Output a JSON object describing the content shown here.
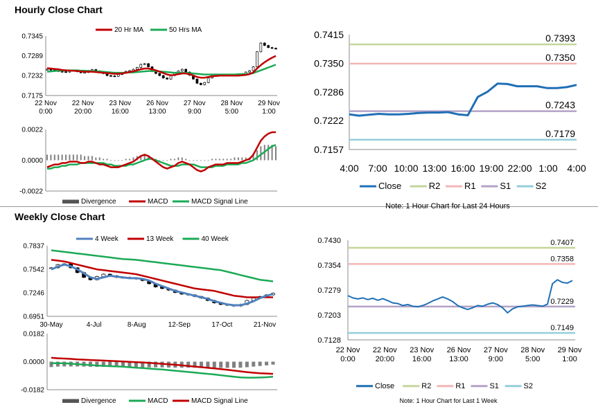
{
  "titles": {
    "hourly": "Hourly Close Chart",
    "weekly": "Weekly Close Chart"
  },
  "chart_data": [
    {
      "id": "hourly-price",
      "type": "line",
      "legend": [
        "20 Hr MA",
        "50 Hrs MA"
      ],
      "colors": {
        "ma20": "#c00000",
        "ma50": "#1aaa55",
        "bars": "#000000"
      },
      "yticks": [
        "0.7345",
        "0.7289",
        "0.7232",
        "0.7175"
      ],
      "ylim": [
        0.7175,
        0.7345
      ],
      "xticks": [
        [
          "22 Nov",
          "0:00"
        ],
        [
          "22 Nov",
          "20:00"
        ],
        [
          "23 Nov",
          "16:00"
        ],
        [
          "26 Nov",
          "13:00"
        ],
        [
          "27 Nov",
          "9:00"
        ],
        [
          "28 Nov",
          "5:00"
        ],
        [
          "29 Nov",
          "1:00"
        ]
      ],
      "close": [
        0.725,
        0.7248,
        0.7246,
        0.7244,
        0.7243,
        0.7242,
        0.7245,
        0.7247,
        0.7243,
        0.724,
        0.7241,
        0.7246,
        0.7249,
        0.7245,
        0.724,
        0.7238,
        0.7232,
        0.7231,
        0.723,
        0.7235,
        0.724,
        0.7244,
        0.7246,
        0.725,
        0.7255,
        0.7264,
        0.7266,
        0.7257,
        0.7244,
        0.7238,
        0.7232,
        0.7225,
        0.7222,
        0.7232,
        0.724,
        0.7245,
        0.725,
        0.7242,
        0.7233,
        0.7222,
        0.721,
        0.7206,
        0.7212,
        0.7225,
        0.7232,
        0.7233,
        0.7233,
        0.7233,
        0.7233,
        0.7233,
        0.7234,
        0.7235,
        0.7237,
        0.7242,
        0.7246,
        0.7257,
        0.73,
        0.7325,
        0.7318,
        0.7312,
        0.731,
        0.7309
      ],
      "ma20": [
        0.7253,
        0.7252,
        0.7251,
        0.725,
        0.7248,
        0.7247,
        0.7246,
        0.7246,
        0.7245,
        0.7244,
        0.7243,
        0.7243,
        0.7243,
        0.7242,
        0.7241,
        0.724,
        0.7239,
        0.7238,
        0.7237,
        0.7237,
        0.7238,
        0.724,
        0.7242,
        0.7244,
        0.7247,
        0.725,
        0.7252,
        0.7252,
        0.725,
        0.7247,
        0.7243,
        0.7239,
        0.7235,
        0.7233,
        0.7234,
        0.7236,
        0.7238,
        0.7238,
        0.7236,
        0.7232,
        0.7228,
        0.7226,
        0.7226,
        0.7228,
        0.723,
        0.7231,
        0.7232,
        0.7232,
        0.7232,
        0.7232,
        0.7232,
        0.7232,
        0.7233,
        0.7234,
        0.7236,
        0.7241,
        0.7252,
        0.7262,
        0.727,
        0.7277,
        0.7283,
        0.7288
      ],
      "ma50": [
        0.7243,
        0.7244,
        0.7245,
        0.7246,
        0.7246,
        0.7247,
        0.7247,
        0.7247,
        0.7247,
        0.7246,
        0.7246,
        0.7245,
        0.7245,
        0.7244,
        0.7244,
        0.7243,
        0.7242,
        0.7241,
        0.724,
        0.724,
        0.724,
        0.724,
        0.7241,
        0.7241,
        0.7242,
        0.7243,
        0.7244,
        0.7245,
        0.7245,
        0.7245,
        0.7244,
        0.7243,
        0.7242,
        0.7241,
        0.724,
        0.724,
        0.724,
        0.724,
        0.7239,
        0.7238,
        0.7237,
        0.7236,
        0.7235,
        0.7235,
        0.7235,
        0.7235,
        0.7235,
        0.7235,
        0.7235,
        0.7235,
        0.7235,
        0.7236,
        0.7236,
        0.7236,
        0.7237,
        0.7239,
        0.7243,
        0.7247,
        0.7251,
        0.7255,
        0.7259,
        0.7263
      ]
    },
    {
      "id": "hourly-macd",
      "type": "line",
      "legend": [
        "Divergence",
        "MACD",
        "MACD Signal Line"
      ],
      "colors": {
        "divergence": "#808080",
        "macd": "#c00000",
        "signal": "#1aaa55"
      },
      "yticks": [
        "0.0022",
        "0.0000",
        "-0.0022"
      ],
      "ylim": [
        -0.0022,
        0.0022
      ],
      "macd": [
        -0.0005,
        -0.0004,
        -0.0003,
        -0.0003,
        -0.0002,
        -0.0002,
        -0.0001,
        -0.0001,
        -0.0001,
        -0.0002,
        -0.0002,
        -0.0001,
        -0.0001,
        -0.0002,
        -0.0003,
        -0.0003,
        -0.0004,
        -0.0005,
        -0.0005,
        -0.0005,
        -0.0004,
        -0.0003,
        -0.0002,
        -0.0001,
        0.0001,
        0.0003,
        0.0004,
        0.0003,
        0.0001,
        -0.0001,
        -0.0003,
        -0.0005,
        -0.0006,
        -0.0005,
        -0.0004,
        -0.0002,
        -0.0001,
        -0.0002,
        -0.0003,
        -0.0005,
        -0.0007,
        -0.0008,
        -0.0007,
        -0.0005,
        -0.0004,
        -0.0003,
        -0.0003,
        -0.0003,
        -0.0002,
        -0.0002,
        -0.0002,
        -0.0002,
        -0.0001,
        0.0,
        0.0001,
        0.0004,
        0.0009,
        0.0014,
        0.0017,
        0.0019,
        0.002,
        0.002
      ],
      "signal": [
        -0.0006,
        -0.0006,
        -0.0005,
        -0.0005,
        -0.0004,
        -0.0004,
        -0.0003,
        -0.0003,
        -0.0003,
        -0.0002,
        -0.0002,
        -0.0002,
        -0.0002,
        -0.0002,
        -0.0002,
        -0.0002,
        -0.0003,
        -0.0003,
        -0.0004,
        -0.0004,
        -0.0004,
        -0.0004,
        -0.0003,
        -0.0003,
        -0.0002,
        -0.0001,
        0.0,
        0.0001,
        0.0001,
        0.0,
        -0.0001,
        -0.0002,
        -0.0003,
        -0.0004,
        -0.0004,
        -0.0004,
        -0.0003,
        -0.0003,
        -0.0003,
        -0.0003,
        -0.0004,
        -0.0005,
        -0.0005,
        -0.0005,
        -0.0005,
        -0.0004,
        -0.0004,
        -0.0004,
        -0.0003,
        -0.0003,
        -0.0003,
        -0.0003,
        -0.0002,
        -0.0002,
        -0.0001,
        0.0,
        0.0002,
        0.0004,
        0.0006,
        0.0008,
        0.001,
        0.0011
      ],
      "divergence": [
        0.0004,
        0.0004,
        0.0004,
        0.0004,
        0.0004,
        0.0004,
        0.0004,
        0.0004,
        0.0004,
        0.0004,
        0.0003,
        0.0003,
        0.0003,
        0.0002,
        0.0002,
        0.0001,
        0.0001,
        0.0,
        0.0,
        0.0,
        0.0,
        0.0001,
        0.0001,
        0.0002,
        0.0003,
        0.0003,
        0.0004,
        0.0003,
        0.0002,
        0.0001,
        0.0,
        0.0,
        0.0,
        0.0001,
        0.0001,
        0.0002,
        0.0002,
        0.0001,
        0.0,
        0.0,
        0.0,
        0.0,
        0.0,
        0.0,
        0.0001,
        0.0001,
        0.0001,
        0.0001,
        0.0001,
        0.0001,
        0.0002,
        0.0002,
        0.0002,
        0.0002,
        0.0002,
        0.0004,
        0.0007,
        0.001,
        0.0011,
        0.0011,
        0.0011,
        0.001
      ]
    },
    {
      "id": "hourly-24h",
      "type": "line",
      "legend": [
        "Close",
        "R2",
        "R1",
        "S1",
        "S2"
      ],
      "note": "Note: 1 Hour Chart for Last 24 Hours",
      "colors": {
        "close": "#1f6fb5",
        "r2": "#c3d69b",
        "r1": "#f2b6b6",
        "s1": "#b3a2c7",
        "s2": "#93cddd"
      },
      "yticks": [
        "0.7415",
        "0.7350",
        "0.7286",
        "0.7222",
        "0.7157"
      ],
      "ylim": [
        0.7157,
        0.7415
      ],
      "xticks": [
        "4:00",
        "7:00",
        "10:00",
        "13:00",
        "16:00",
        "19:00",
        "22:00",
        "1:00",
        "4:00"
      ],
      "levels": {
        "r2": 0.7393,
        "r1": 0.735,
        "s1": 0.7243,
        "s2": 0.7179
      },
      "level_labels": {
        "r2": "0.7393",
        "r1": "0.7350",
        "s1": "0.7243",
        "s2": "0.7179"
      },
      "close": [
        0.7236,
        0.7233,
        0.7235,
        0.7237,
        0.7236,
        0.7236,
        0.7237,
        0.7239,
        0.724,
        0.724,
        0.7241,
        0.7236,
        0.7234,
        0.7275,
        0.7287,
        0.7305,
        0.7304,
        0.7299,
        0.7299,
        0.7299,
        0.7295,
        0.7295,
        0.7297,
        0.7302
      ]
    },
    {
      "id": "weekly-price",
      "type": "line",
      "legend": [
        "4 Week",
        "13 Week",
        "40 Week"
      ],
      "colors": {
        "w4": "#4f81bd",
        "w13": "#c00000",
        "w40": "#1aaa55"
      },
      "yticks": [
        "0.7837",
        "0.7542",
        "0.7246",
        "0.6951"
      ],
      "ylim": [
        0.6951,
        0.7837
      ],
      "xticks": [
        "30-May",
        "4-Jul",
        "8-Aug",
        "12-Sep",
        "17-Oct",
        "21-Nov"
      ],
      "close": [
        0.756,
        0.76,
        0.761,
        0.756,
        0.75,
        0.744,
        0.741,
        0.745,
        0.748,
        0.746,
        0.744,
        0.744,
        0.743,
        0.742,
        0.74,
        0.736,
        0.732,
        0.73,
        0.728,
        0.725,
        0.723,
        0.722,
        0.72,
        0.718,
        0.715,
        0.712,
        0.71,
        0.709,
        0.708,
        0.71,
        0.715,
        0.718,
        0.72,
        0.722,
        0.724
      ],
      "w4": [
        0.754,
        0.7575,
        0.76,
        0.758,
        0.754,
        0.749,
        0.744,
        0.742,
        0.744,
        0.746,
        0.745,
        0.744,
        0.743,
        0.743,
        0.742,
        0.74,
        0.736,
        0.733,
        0.73,
        0.727,
        0.725,
        0.723,
        0.721,
        0.719,
        0.717,
        0.714,
        0.712,
        0.71,
        0.709,
        0.709,
        0.711,
        0.714,
        0.718,
        0.721,
        0.723
      ],
      "w13": [
        0.766,
        0.765,
        0.764,
        0.762,
        0.76,
        0.758,
        0.756,
        0.754,
        0.753,
        0.752,
        0.751,
        0.75,
        0.749,
        0.748,
        0.746,
        0.744,
        0.742,
        0.74,
        0.738,
        0.736,
        0.734,
        0.732,
        0.73,
        0.729,
        0.728,
        0.727,
        0.725,
        0.723,
        0.721,
        0.72,
        0.719,
        0.719,
        0.719,
        0.719,
        0.719
      ],
      "w40": [
        0.778,
        0.777,
        0.776,
        0.775,
        0.774,
        0.773,
        0.772,
        0.771,
        0.77,
        0.769,
        0.768,
        0.767,
        0.7665,
        0.766,
        0.765,
        0.764,
        0.763,
        0.762,
        0.761,
        0.76,
        0.759,
        0.758,
        0.757,
        0.756,
        0.755,
        0.754,
        0.753,
        0.751,
        0.749,
        0.747,
        0.745,
        0.743,
        0.741,
        0.74,
        0.739
      ]
    },
    {
      "id": "weekly-macd",
      "type": "line",
      "legend": [
        "Divergence",
        "MACD",
        "MACD Signal Line"
      ],
      "colors": {
        "divergence": "#808080",
        "macd": "#1aaa55",
        "signal": "#c00000"
      },
      "yticks": [
        "0.0182",
        "0.0000",
        "-0.0182"
      ],
      "ylim": [
        -0.0182,
        0.0182
      ],
      "macd": [
        -0.001,
        -0.001,
        -0.0011,
        -0.0013,
        -0.0016,
        -0.0019,
        -0.0022,
        -0.0025,
        -0.0027,
        -0.0029,
        -0.0031,
        -0.0033,
        -0.0036,
        -0.0039,
        -0.0042,
        -0.0045,
        -0.0048,
        -0.0051,
        -0.0055,
        -0.0059,
        -0.0063,
        -0.0067,
        -0.0071,
        -0.0075,
        -0.0079,
        -0.0083,
        -0.0088,
        -0.0093,
        -0.0098,
        -0.0102,
        -0.0104,
        -0.0104,
        -0.0103,
        -0.0101,
        -0.0098
      ],
      "signal": [
        0.0025,
        0.0022,
        0.002,
        0.0018,
        0.0015,
        0.0013,
        0.0011,
        0.0009,
        0.0007,
        0.0005,
        0.0003,
        0.0001,
        -0.0001,
        -0.0003,
        -0.0005,
        -0.0008,
        -0.0011,
        -0.0014,
        -0.0017,
        -0.002,
        -0.0024,
        -0.0028,
        -0.0032,
        -0.0036,
        -0.004,
        -0.0044,
        -0.0048,
        -0.0053,
        -0.0058,
        -0.0063,
        -0.0068,
        -0.0072,
        -0.0075,
        -0.0077,
        -0.0079
      ],
      "divergence": [
        -0.0035,
        -0.0032,
        -0.0031,
        -0.0031,
        -0.0031,
        -0.0032,
        -0.0033,
        -0.0034,
        -0.0034,
        -0.0034,
        -0.0034,
        -0.0034,
        -0.0035,
        -0.0036,
        -0.0037,
        -0.0037,
        -0.0037,
        -0.0037,
        -0.0038,
        -0.0039,
        -0.0039,
        -0.0039,
        -0.0039,
        -0.0039,
        -0.0039,
        -0.0039,
        -0.004,
        -0.004,
        -0.004,
        -0.0039,
        -0.0036,
        -0.0032,
        -0.0028,
        -0.0024,
        -0.0019
      ]
    },
    {
      "id": "weekly-1w",
      "type": "line",
      "legend": [
        "Close",
        "R2",
        "R1",
        "S1",
        "S2"
      ],
      "note": "Note: 1 Hour Chart for Last 1 Week",
      "colors": {
        "close": "#1f6fb5",
        "r2": "#c3d69b",
        "r1": "#f2b6b6",
        "s1": "#b3a2c7",
        "s2": "#93cddd"
      },
      "yticks": [
        "0.7430",
        "0.7354",
        "0.7279",
        "0.7203",
        "0.7128"
      ],
      "ylim": [
        0.7128,
        0.743
      ],
      "xticks": [
        [
          "22 Nov",
          "0:00"
        ],
        [
          "22 Nov",
          "20:00"
        ],
        [
          "23 Nov",
          "16:00"
        ],
        [
          "26 Nov",
          "13:00"
        ],
        [
          "27 Nov",
          "9:00"
        ],
        [
          "28 Nov",
          "5:00"
        ],
        [
          "29 Nov",
          "1:00"
        ]
      ],
      "levels": {
        "r2": 0.7407,
        "r1": 0.7358,
        "s1": 0.7229,
        "s2": 0.7149
      },
      "level_labels": {
        "r2": "0.7407",
        "r1": "0.7358",
        "s1": "0.7229",
        "s2": "0.7149"
      },
      "close": [
        0.7262,
        0.7255,
        0.7252,
        0.7255,
        0.725,
        0.7254,
        0.7248,
        0.7253,
        0.7247,
        0.724,
        0.7238,
        0.7232,
        0.7235,
        0.723,
        0.7228,
        0.7232,
        0.7238,
        0.7246,
        0.7252,
        0.7258,
        0.7252,
        0.7244,
        0.7232,
        0.7225,
        0.722,
        0.7225,
        0.7232,
        0.723,
        0.7236,
        0.724,
        0.7235,
        0.7225,
        0.721,
        0.7222,
        0.7228,
        0.723,
        0.7232,
        0.7234,
        0.7232,
        0.723,
        0.7236,
        0.7298,
        0.731,
        0.7302,
        0.73,
        0.7308
      ]
    }
  ]
}
